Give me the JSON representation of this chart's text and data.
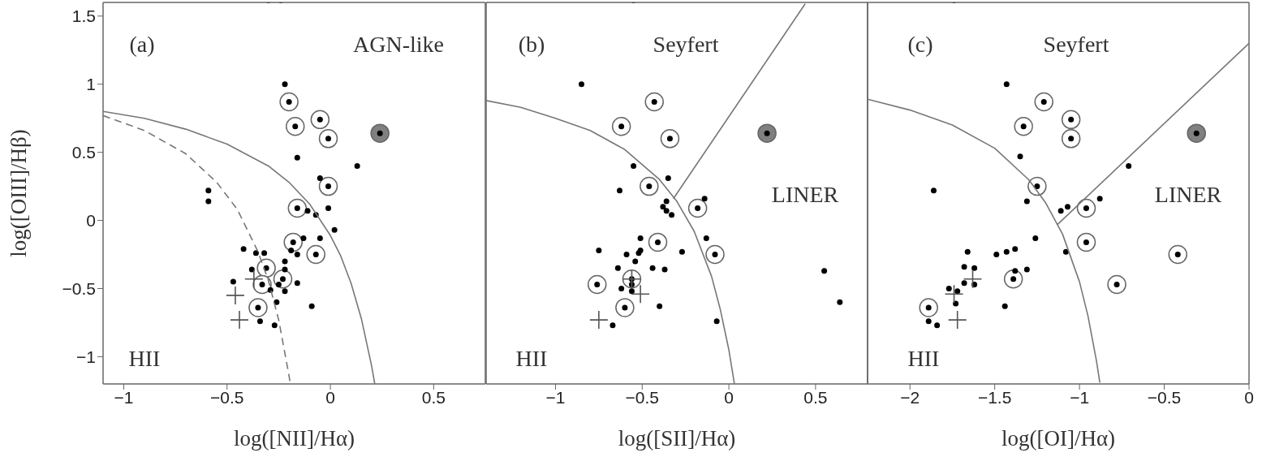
{
  "chart_data": [
    {
      "type": "scatter",
      "xlabel": "log([NII]/Hα)",
      "ylabel": "log([OIII]/Hβ)",
      "xlim": [
        -1.1,
        0.75
      ],
      "ylim": [
        -1.2,
        1.6
      ],
      "xticks": [
        -1,
        -0.5,
        0,
        0.5
      ],
      "yticks": [
        -1,
        -0.5,
        0,
        0.5,
        1,
        1.5
      ],
      "annotations": [
        "(a)",
        "AGN-like",
        "HII"
      ],
      "series": [
        {
          "type": "bubble",
          "color": "#ffffff",
          "x": [
            -0.2,
            -0.17,
            -0.05,
            -0.01,
            -0.01,
            -0.16,
            -0.18,
            -0.07,
            -0.31,
            -0.23,
            -0.33,
            -0.35
          ],
          "values": [
            0.87,
            0.69,
            0.74,
            0.6,
            0.25,
            0.09,
            -0.16,
            -0.25,
            -0.35,
            -0.43,
            -0.47,
            -0.64
          ],
          "sizes": [
            1,
            1,
            1,
            1,
            1,
            1,
            1,
            1,
            1,
            1,
            1,
            1
          ]
        },
        {
          "type": "bubble",
          "color": "#808080",
          "x": [
            0.24
          ],
          "values": [
            0.64
          ],
          "sizes": [
            1
          ]
        },
        {
          "type": "scatter",
          "marker": "circle",
          "color": "#000000",
          "x": [
            -0.22,
            -0.59,
            -0.59,
            -0.16,
            0.13,
            -0.05,
            -0.11,
            -0.07,
            -0.01,
            0.02,
            -0.13,
            -0.05,
            -0.42,
            -0.36,
            -0.32,
            -0.19,
            -0.16,
            -0.22,
            -0.38,
            -0.3,
            -0.22,
            -0.24,
            -0.25,
            -0.22,
            -0.29,
            -0.47,
            -0.16,
            -0.26,
            -0.09,
            -0.34,
            -0.27,
            -0.2,
            -0.17,
            -0.05,
            -0.01,
            -0.01,
            -0.16,
            -0.18,
            -0.07,
            -0.31,
            -0.23,
            -0.33,
            -0.35,
            0.24
          ],
          "values": [
            1.0,
            0.22,
            0.14,
            0.46,
            0.4,
            0.31,
            0.07,
            0.04,
            0.09,
            -0.07,
            -0.13,
            -0.13,
            -0.21,
            -0.24,
            -0.24,
            -0.22,
            -0.25,
            -0.3,
            -0.36,
            null,
            -0.36,
            null,
            -0.47,
            -0.52,
            -0.51,
            -0.45,
            -0.46,
            -0.6,
            -0.63,
            -0.74,
            -0.77,
            0.87,
            0.69,
            0.74,
            0.6,
            0.25,
            0.09,
            -0.16,
            -0.25,
            -0.35,
            -0.43,
            -0.47,
            -0.64,
            0.64
          ]
        },
        {
          "type": "scatter",
          "marker": "cross",
          "color": "#555555",
          "x": [
            -0.37,
            -0.46,
            -0.44
          ],
          "values": [
            -0.43,
            -0.55,
            -0.73
          ]
        },
        {
          "type": "line",
          "marker": "none",
          "line_style": "solid",
          "color": "#777777",
          "x": [
            -1.1,
            -0.9,
            -0.7,
            -0.5,
            -0.3,
            -0.2,
            -0.1,
            0,
            0.05,
            0.1,
            0.15,
            0.2,
            0.215
          ],
          "values": [
            0.8,
            0.75,
            0.67,
            0.56,
            0.4,
            0.28,
            0.12,
            -0.11,
            -0.26,
            -0.46,
            -0.72,
            -1.07,
            -1.2
          ]
        },
        {
          "type": "line",
          "marker": "none",
          "line_style": "dashed",
          "color": "#777777",
          "x": [
            -1.1,
            -0.9,
            -0.7,
            -0.55,
            -0.45,
            -0.35,
            -0.3,
            -0.25,
            -0.2,
            -0.194
          ],
          "values": [
            0.77,
            0.66,
            0.49,
            0.28,
            0.08,
            -0.23,
            -0.44,
            -0.73,
            -1.14,
            -1.2
          ]
        }
      ]
    },
    {
      "type": "scatter",
      "xlabel": "log([SII]/Hα)",
      "xlim": [
        -1.4,
        0.8
      ],
      "ylim": [
        -1.2,
        1.6
      ],
      "xticks": [
        -1,
        -0.5,
        0,
        0.5
      ],
      "yticks": [
        -1,
        -0.5,
        0,
        0.5,
        1,
        1.5
      ],
      "tick_labels": "x",
      "annotations": [
        "(b)",
        "Seyfert",
        "LINER",
        "HII"
      ],
      "series": [
        {
          "type": "bubble",
          "color": "#ffffff",
          "x": [
            -0.43,
            -0.62,
            -0.34,
            -0.46,
            -0.18,
            -0.41,
            -0.08,
            -0.56,
            -0.76,
            -0.6
          ],
          "values": [
            0.87,
            0.69,
            0.6,
            0.25,
            0.09,
            -0.16,
            -0.25,
            -0.43,
            -0.47,
            -0.64
          ],
          "sizes": [
            1,
            1,
            1,
            1,
            1,
            1,
            1,
            1,
            1,
            1
          ]
        },
        {
          "type": "bubble",
          "color": "#808080",
          "x": [
            0.22
          ],
          "values": [
            0.64
          ],
          "sizes": [
            1
          ]
        },
        {
          "type": "scatter",
          "marker": "circle",
          "color": "#000000",
          "x": [
            -0.85,
            -0.55,
            -0.35,
            -0.63,
            -0.36,
            -0.38,
            -0.36,
            -0.33,
            -0.14,
            -0.51,
            -0.13,
            -0.75,
            -0.59,
            -0.51,
            -0.52,
            -0.27,
            -0.54,
            -0.64,
            -0.44,
            -0.37,
            -0.55,
            -0.56,
            -0.62,
            -0.56,
            -0.4,
            -0.67,
            -0.07,
            0.55,
            0.64,
            -0.43,
            -0.62,
            -0.34,
            -0.46,
            -0.18,
            -0.41,
            -0.08,
            -0.56,
            -0.76,
            -0.6,
            0.22
          ],
          "values": [
            1.0,
            0.4,
            0.31,
            0.22,
            0.14,
            0.1,
            0.07,
            0.04,
            0.16,
            -0.13,
            -0.13,
            -0.22,
            -0.25,
            -0.22,
            -0.24,
            -0.23,
            -0.3,
            -0.35,
            -0.35,
            -0.36,
            null,
            -0.47,
            -0.5,
            -0.52,
            -0.63,
            -0.77,
            -0.74,
            -0.37,
            -0.6,
            0.87,
            0.69,
            0.6,
            0.25,
            0.09,
            -0.16,
            -0.25,
            -0.43,
            -0.47,
            -0.64,
            0.64
          ]
        },
        {
          "type": "scatter",
          "marker": "cross",
          "color": "#555555",
          "x": [
            -0.56,
            -0.51,
            -0.75
          ],
          "values": [
            -0.43,
            -0.54,
            -0.73
          ]
        },
        {
          "type": "line",
          "marker": "none",
          "line_style": "solid",
          "color": "#777777",
          "x": [
            -1.4,
            -1.2,
            -1.0,
            -0.8,
            -0.6,
            -0.4,
            -0.3,
            -0.2,
            -0.1,
            -0.05,
            0,
            0.032
          ],
          "values": [
            0.88,
            0.83,
            0.75,
            0.66,
            0.52,
            0.3,
            0.14,
            -0.08,
            -0.41,
            -0.65,
            -0.95,
            -1.2
          ]
        },
        {
          "type": "line",
          "marker": "none",
          "line_style": "solid",
          "color": "#777777",
          "x": [
            -0.32,
            0.44
          ],
          "values": [
            0.16,
            1.59
          ]
        }
      ]
    },
    {
      "type": "scatter",
      "xlabel": "log([OI]/Hα)",
      "xlim": [
        -2.25,
        0
      ],
      "ylim": [
        -1.2,
        1.6
      ],
      "xticks": [
        -2,
        -1.5,
        -1,
        -0.5,
        0
      ],
      "yticks": [
        -1,
        -0.5,
        0,
        0.5,
        1,
        1.5
      ],
      "tick_labels": "x",
      "annotations": [
        "(c)",
        "Seyfert",
        "LINER",
        "HII"
      ],
      "series": [
        {
          "type": "bubble",
          "color": "#ffffff",
          "x": [
            -1.21,
            -1.33,
            -1.05,
            -1.05,
            -1.25,
            -0.96,
            -0.96,
            -0.42,
            -1.39,
            -0.78,
            -1.89
          ],
          "values": [
            0.87,
            0.69,
            0.74,
            0.6,
            0.25,
            0.09,
            -0.16,
            -0.25,
            -0.43,
            -0.47,
            -0.64
          ],
          "sizes": [
            1,
            1,
            1,
            1,
            1,
            1,
            1,
            1,
            1,
            1,
            1
          ]
        },
        {
          "type": "bubble",
          "color": "#808080",
          "x": [
            -0.31
          ],
          "values": [
            0.64
          ],
          "sizes": [
            1
          ]
        },
        {
          "type": "scatter",
          "marker": "circle",
          "color": "#000000",
          "x": [
            -1.43,
            -1.35,
            -0.71,
            -1.86,
            -1.31,
            -0.88,
            -1.11,
            -1.07,
            -1.26,
            -1.08,
            -1.66,
            -1.49,
            -1.43,
            -1.38,
            -1.68,
            -1.62,
            -1.38,
            -1.31,
            -1.68,
            -1.62,
            -1.77,
            -1.74,
            -1.72,
            -1.73,
            -1.44,
            -1.89,
            -1.84,
            -1.21,
            -1.33,
            -1.05,
            -1.05,
            -1.25,
            -0.96,
            -0.96,
            -0.42,
            -1.39,
            -0.78,
            -1.89,
            -0.31
          ],
          "values": [
            1.0,
            0.47,
            0.4,
            0.22,
            0.14,
            0.16,
            0.07,
            0.1,
            -0.13,
            -0.23,
            -0.23,
            -0.25,
            -0.23,
            -0.21,
            -0.34,
            -0.35,
            -0.37,
            -0.36,
            -0.46,
            -0.47,
            -0.5,
            null,
            -0.52,
            -0.61,
            -0.63,
            -0.74,
            -0.77,
            0.87,
            0.69,
            0.74,
            0.6,
            0.25,
            0.09,
            -0.16,
            -0.25,
            -0.43,
            -0.47,
            -0.64,
            0.64
          ]
        },
        {
          "type": "scatter",
          "marker": "cross",
          "color": "#555555",
          "x": [
            -1.63,
            -1.74,
            -1.72
          ],
          "values": [
            -0.43,
            -0.54,
            -0.73
          ]
        },
        {
          "type": "line",
          "marker": "none",
          "line_style": "solid",
          "color": "#777777",
          "x": [
            -2.25,
            -2.0,
            -1.75,
            -1.5,
            -1.3,
            -1.2,
            -1.1,
            -1.0,
            -0.95,
            -0.9,
            -0.88
          ],
          "values": [
            0.89,
            0.81,
            0.7,
            0.53,
            0.3,
            0.13,
            -0.1,
            -0.45,
            -0.7,
            -1.03,
            -1.19
          ]
        },
        {
          "type": "line",
          "marker": "none",
          "line_style": "solid",
          "color": "#777777",
          "x": [
            -1.13,
            0
          ],
          "values": [
            -0.03,
            1.3
          ]
        }
      ]
    }
  ]
}
